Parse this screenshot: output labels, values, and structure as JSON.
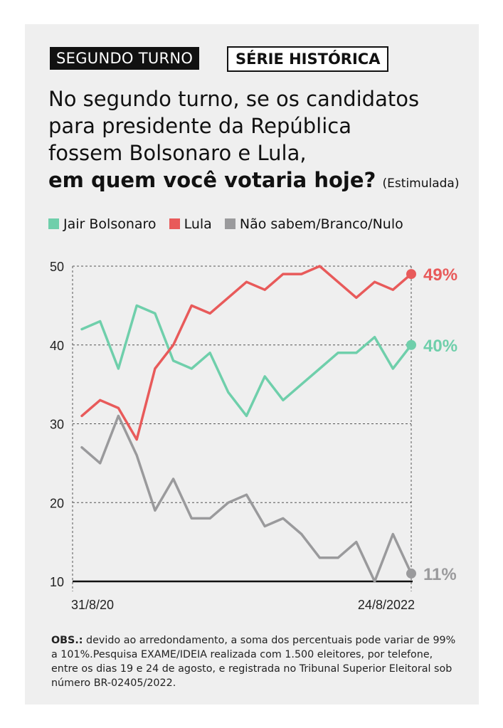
{
  "tags": {
    "segundo_turno": "SEGUNDO TURNO",
    "serie_historica": "SÉRIE HISTÓRICA"
  },
  "question": {
    "line1": "No segundo turno, se os candidatos",
    "line2": "para presidente da República",
    "line3": "fossem Bolsonaro e Lula,",
    "bold": "em quem você votaria hoje?",
    "note": "(Estimulada)"
  },
  "colors": {
    "bolsonaro": "#6fcfab",
    "lula": "#e85a5a",
    "nulo": "#9a9a9c"
  },
  "chart_data": {
    "type": "line",
    "ylim": [
      10,
      50
    ],
    "yticks": [
      10,
      20,
      30,
      40,
      50
    ],
    "x_start_label": "31/8/20",
    "x_end_label": "24/8/2022",
    "series": [
      {
        "name": "Jair Bolsonaro",
        "color": "#6fcfab",
        "end_label": "40%",
        "values": [
          42,
          43,
          37,
          45,
          44,
          38,
          37,
          39,
          34,
          31,
          36,
          33,
          35,
          37,
          39,
          39,
          41,
          37,
          40
        ]
      },
      {
        "name": "Lula",
        "color": "#e85a5a",
        "end_label": "49%",
        "values": [
          31,
          33,
          32,
          28,
          37,
          40,
          45,
          44,
          46,
          48,
          47,
          49,
          49,
          50,
          48,
          46,
          48,
          47,
          49
        ]
      },
      {
        "name": "Não sabem/Branco/Nulo",
        "color": "#9a9a9c",
        "end_label": "11%",
        "values": [
          27,
          25,
          31,
          26,
          19,
          23,
          18,
          18,
          20,
          21,
          17,
          18,
          16,
          13,
          13,
          15,
          10,
          16,
          11
        ]
      }
    ]
  },
  "obs": {
    "label": "OBS.:",
    "text": " devido ao arredondamento, a soma dos percentuais pode variar de 99% a 101%.Pesquisa EXAME/IDEIA realizada com 1.500 eleitores, por telefone, entre os dias 19 e 24 de agosto, e registrada no Tribunal Superior Eleitoral sob número BR-02405/2022."
  }
}
